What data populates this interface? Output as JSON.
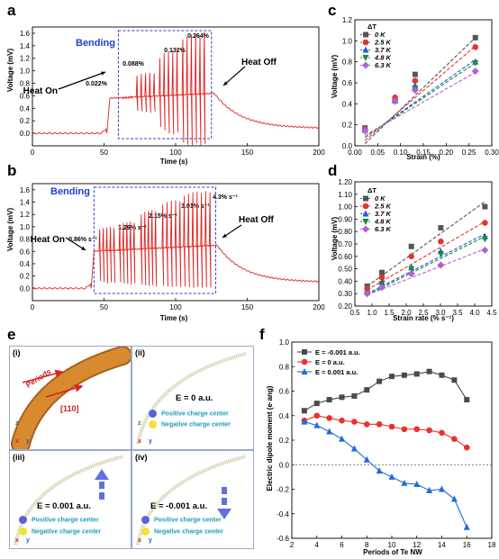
{
  "panels": {
    "a": {
      "letter": "a",
      "ylabel": "Voltage (mV)",
      "xlabel": "Time (s)",
      "bending": "Bending",
      "heat_on": "Heat On",
      "heat_off": "Heat Off",
      "strain_labels": [
        "0.022%",
        "0.088%",
        "0.132%",
        "0.264%"
      ]
    },
    "b": {
      "letter": "b",
      "ylabel": "Voltage (mV)",
      "xlabel": "Time (s)",
      "bending": "Bending",
      "heat_on": "Heat On",
      "heat_off": "Heat Off",
      "rate_labels": [
        "0.86% s⁻¹",
        "1.29% s⁻¹",
        "2.15% s⁻¹",
        "3.01% s⁻¹",
        "4.3% s⁻¹"
      ]
    },
    "c": {
      "letter": "c",
      "ylabel": "Voltage (mV)",
      "xlabel": "Strain (%)"
    },
    "d": {
      "letter": "d",
      "ylabel": "Voltage (mV)",
      "xlabel": "Strain rate (% s⁻¹)"
    },
    "e": {
      "letter": "e",
      "sub_i": "(i)",
      "sub_ii": "(ii)",
      "sub_iii": "(iii)",
      "sub_iv": "(iv)",
      "periods_label": "Periods",
      "dir_label": "[110]",
      "axis_x": "x",
      "axis_y": "y",
      "axis_z": "z",
      "field_ii": "E = 0 a.u.",
      "field_iii": "E = 0.001 a.u.",
      "field_iv": "E = -0.001 a.u.",
      "pos_center": "Positive charge center",
      "neg_center": "Negative charge center"
    },
    "f": {
      "letter": "f",
      "ylabel": "Electric dipole moment (e·ang)",
      "xlabel": "Periods of Te NW"
    }
  },
  "chart_data": [
    {
      "id": "a",
      "type": "line",
      "xlabel": "Time (s)",
      "ylabel": "Voltage (mV)",
      "xlim": [
        0,
        200
      ],
      "ylim": [
        -0.2,
        1.7
      ],
      "xticks": [
        0,
        50,
        100,
        150,
        200
      ],
      "yticks": [
        0.0,
        0.2,
        0.4,
        0.6,
        0.8,
        1.0,
        1.2,
        1.4,
        1.6
      ],
      "baseline": 0.0,
      "heat_on_time": 52,
      "heat_off_time": 127,
      "plateau_start": 0.56,
      "plateau_end": 0.64,
      "decay_end": 0.08,
      "bending_window": [
        60,
        125
      ],
      "peak_groups": [
        {
          "label": "0.022%",
          "t": [
            63,
            65,
            67,
            69
          ],
          "max": [
            0.57,
            0.58,
            0.58,
            0.59
          ],
          "min": [
            0.55,
            0.55,
            0.55,
            0.56
          ]
        },
        {
          "label": "0.088%",
          "t": [
            73,
            76,
            79,
            82,
            85
          ],
          "max": [
            0.92,
            0.95,
            0.96,
            0.97,
            0.96
          ],
          "min": [
            0.36,
            0.35,
            0.34,
            0.33,
            0.35
          ]
        },
        {
          "label": "0.132%",
          "t": [
            89,
            92,
            95,
            98,
            101
          ],
          "max": [
            1.2,
            1.28,
            1.3,
            1.32,
            1.34
          ],
          "min": [
            0.1,
            0.05,
            0.0,
            -0.02,
            0.02
          ]
        },
        {
          "label": "0.264%",
          "t": [
            105,
            108,
            111,
            114,
            117,
            120
          ],
          "max": [
            1.5,
            1.55,
            1.58,
            1.6,
            1.56,
            1.62
          ],
          "min": [
            -0.15,
            -0.18,
            -0.2,
            -0.16,
            -0.19,
            -0.17
          ]
        }
      ]
    },
    {
      "id": "b",
      "type": "line",
      "xlabel": "Time (s)",
      "ylabel": "Voltage (mV)",
      "xlim": [
        0,
        200
      ],
      "ylim": [
        -0.2,
        1.7
      ],
      "xticks": [
        0,
        50,
        100,
        150,
        200
      ],
      "yticks": [
        0.0,
        0.2,
        0.4,
        0.6,
        0.8,
        1.0,
        1.2,
        1.4,
        1.6
      ],
      "baseline": 0.0,
      "heat_on_time": 41,
      "heat_off_time": 129,
      "plateau_start": 0.6,
      "plateau_end": 0.7,
      "decay_end": 0.1,
      "bending_window": [
        43,
        128
      ],
      "peak_groups": [
        {
          "label": "0.86% s⁻¹",
          "t": [
            47,
            49.5,
            52,
            54.5,
            57
          ],
          "max": [
            0.96,
            0.98,
            0.99,
            1.0,
            0.98
          ],
          "min": [
            0.12,
            0.1,
            0.08,
            0.1,
            0.09
          ]
        },
        {
          "label": "1.29% s⁻¹",
          "t": [
            61,
            63.5,
            66,
            68.5,
            71
          ],
          "max": [
            1.04,
            1.06,
            1.07,
            1.08,
            1.06
          ],
          "min": [
            0.1,
            0.08,
            0.07,
            0.06,
            0.08
          ]
        },
        {
          "label": "2.15% s⁻¹",
          "t": [
            76,
            78.5,
            81,
            83.5,
            86
          ],
          "max": [
            1.2,
            1.24,
            1.26,
            1.27,
            1.25
          ],
          "min": [
            0.06,
            0.05,
            0.04,
            0.05,
            0.03
          ]
        },
        {
          "label": "3.01% s⁻¹",
          "t": [
            91,
            94,
            97,
            100,
            103
          ],
          "max": [
            1.36,
            1.4,
            1.42,
            1.43,
            1.41
          ],
          "min": [
            0.04,
            0.03,
            0.02,
            0.03,
            0.02
          ]
        },
        {
          "label": "4.3% s⁻¹",
          "t": [
            106,
            109,
            112,
            115,
            118,
            121,
            124
          ],
          "max": [
            1.5,
            1.54,
            1.56,
            1.57,
            1.55,
            1.58,
            1.56
          ],
          "min": [
            0.03,
            0.02,
            0.01,
            0.02,
            0.01,
            0.02,
            0.01
          ]
        }
      ]
    },
    {
      "id": "c",
      "type": "scatter",
      "xlabel": "Strain (%)",
      "ylabel": "Voltage (mV)",
      "xlim": [
        0.0,
        0.3
      ],
      "ylim": [
        0.0,
        1.2
      ],
      "xticks": [
        0.0,
        0.05,
        0.1,
        0.15,
        0.2,
        0.25,
        0.3
      ],
      "yticks": [
        0.0,
        0.2,
        0.4,
        0.6,
        0.8,
        1.0,
        1.2
      ],
      "legend_title": "ΔT",
      "legend_position": "top-left",
      "x": [
        0.022,
        0.088,
        0.132,
        0.264
      ],
      "series": [
        {
          "name": "0 K",
          "color": "#555555",
          "marker": "square",
          "values": [
            0.17,
            0.44,
            0.68,
            1.03
          ],
          "fit": [
            0.02,
            1.03
          ]
        },
        {
          "name": "2.5 K",
          "color": "#e8322b",
          "marker": "circle",
          "values": [
            0.16,
            0.46,
            0.62,
            0.94
          ],
          "fit": [
            0.05,
            0.95
          ]
        },
        {
          "name": "3.7 K",
          "color": "#1f5bd8",
          "marker": "triangle-up",
          "values": [
            0.15,
            0.43,
            0.57,
            0.8
          ],
          "fit": [
            0.08,
            0.82
          ]
        },
        {
          "name": "4.8 K",
          "color": "#1a8a3a",
          "marker": "triangle-down",
          "values": [
            0.14,
            0.42,
            0.55,
            0.79
          ],
          "fit": [
            0.08,
            0.79
          ]
        },
        {
          "name": "6.3 K",
          "color": "#b45fd3",
          "marker": "diamond",
          "values": [
            0.15,
            0.43,
            0.53,
            0.71
          ],
          "fit": [
            0.1,
            0.7
          ]
        }
      ]
    },
    {
      "id": "d",
      "type": "scatter",
      "xlabel": "Strain rate (% s⁻¹)",
      "ylabel": "Voltage (mV)",
      "xlim": [
        0.5,
        4.5
      ],
      "ylim": [
        0.2,
        1.2
      ],
      "xticks": [
        0.5,
        1.0,
        1.5,
        2.0,
        2.5,
        3.0,
        3.5,
        4.0,
        4.5
      ],
      "yticks": [
        0.2,
        0.3,
        0.4,
        0.5,
        0.6,
        0.7,
        0.8,
        0.9,
        1.0,
        1.1,
        1.2
      ],
      "legend_title": "ΔT",
      "legend_position": "top-left",
      "x": [
        0.86,
        1.29,
        2.15,
        3.01,
        4.3
      ],
      "series": [
        {
          "name": "0 K",
          "color": "#555555",
          "marker": "square",
          "values": [
            0.36,
            0.47,
            0.68,
            0.83,
            1.0
          ],
          "fit": [
            0.36,
            1.04
          ]
        },
        {
          "name": "2.5 K",
          "color": "#e8322b",
          "marker": "circle",
          "values": [
            0.34,
            0.43,
            0.6,
            0.72,
            0.87
          ],
          "fit": [
            0.33,
            0.88
          ]
        },
        {
          "name": "3.7 K",
          "color": "#1f5bd8",
          "marker": "triangle-up",
          "values": [
            0.31,
            0.39,
            0.51,
            0.64,
            0.76
          ],
          "fit": [
            0.3,
            0.78
          ]
        },
        {
          "name": "4.8 K",
          "color": "#1a8a3a",
          "marker": "triangle-down",
          "values": [
            0.3,
            0.38,
            0.5,
            0.62,
            0.74
          ],
          "fit": [
            0.29,
            0.76
          ]
        },
        {
          "name": "6.3 K",
          "color": "#b45fd3",
          "marker": "diamond",
          "values": [
            0.3,
            0.35,
            0.46,
            0.53,
            0.65
          ],
          "fit": [
            0.29,
            0.66
          ]
        }
      ]
    },
    {
      "id": "f",
      "type": "line",
      "xlabel": "Periods of Te NW",
      "ylabel": "Electric dipole moment (e·ang)",
      "xlim": [
        2,
        18
      ],
      "ylim": [
        -0.6,
        1.0
      ],
      "xticks": [
        2,
        4,
        6,
        8,
        10,
        12,
        14,
        16,
        18
      ],
      "yticks": [
        -0.6,
        -0.4,
        -0.2,
        0.0,
        0.2,
        0.4,
        0.6,
        0.8,
        1.0
      ],
      "zero_line": true,
      "legend_position": "top-left",
      "x": [
        3,
        4,
        5,
        6,
        7,
        8,
        9,
        10,
        11,
        12,
        13,
        14,
        15,
        16
      ],
      "series": [
        {
          "name": "E = -0.001 a.u.",
          "color": "#4a4a4a",
          "marker": "square",
          "values": [
            0.44,
            0.5,
            0.53,
            0.55,
            0.56,
            0.61,
            0.68,
            0.72,
            0.73,
            0.74,
            0.76,
            0.73,
            0.69,
            0.53
          ]
        },
        {
          "name": "E = 0 a.u.",
          "color": "#e8322b",
          "marker": "circle",
          "values": [
            0.36,
            0.4,
            0.38,
            0.36,
            0.35,
            0.33,
            0.33,
            0.31,
            0.29,
            0.29,
            0.28,
            0.26,
            0.21,
            0.14
          ]
        },
        {
          "name": "E = 0.001 a.u.",
          "color": "#1f6bd8",
          "marker": "triangle-up",
          "values": [
            0.35,
            0.32,
            0.27,
            0.21,
            0.13,
            0.04,
            -0.05,
            -0.1,
            -0.15,
            -0.16,
            -0.21,
            -0.2,
            -0.28,
            -0.51
          ]
        }
      ]
    }
  ]
}
